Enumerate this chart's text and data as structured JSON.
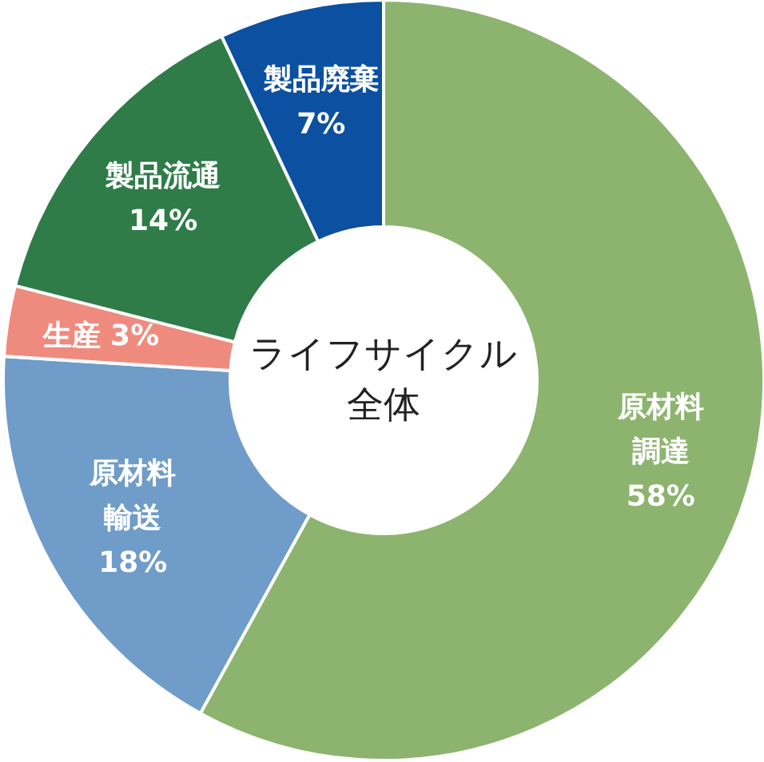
{
  "chart_data": {
    "type": "donut",
    "title": "ライフサイクル全体",
    "categories": [
      "原材料調達",
      "原材料輸送",
      "生産",
      "製品流通",
      "製品廃棄"
    ],
    "values": [
      58,
      18,
      3,
      14,
      7
    ],
    "value_labels": [
      "58%",
      "18%",
      "3%",
      "14%",
      "7%"
    ],
    "colors": [
      "#8cb46e",
      "#6f9cc9",
      "#ef8b7e",
      "#2f7c49",
      "#0b50a1"
    ]
  }
}
